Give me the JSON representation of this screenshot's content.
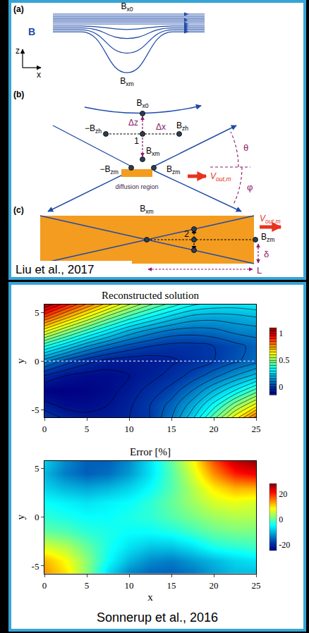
{
  "diagram": {
    "citation": "Liu et al., 2017",
    "a": {
      "letter": "(a)",
      "field": "B",
      "top": {
        "text": "B",
        "sub": "x0"
      },
      "bottom": {
        "text": "B",
        "sub": "xm"
      },
      "axis_vertical": "z",
      "axis_horizontal": "x"
    },
    "b": {
      "letter": "(b)",
      "top": {
        "text": "B",
        "sub": "x0"
      },
      "center": "1",
      "dz": "Δz",
      "dx": "Δx",
      "left": {
        "text": "−B",
        "sub": "zh"
      },
      "right": {
        "text": "B",
        "sub": "zh"
      },
      "mid": {
        "text": "B",
        "sub": "xm"
      },
      "theta": "θ",
      "phi": "φ",
      "left_low": {
        "text": "−B",
        "sub": "zm"
      },
      "right_low": {
        "text": "B",
        "sub": "zm"
      },
      "outflow": {
        "text": "V",
        "sub": "out,m"
      },
      "region": "diffusion region"
    },
    "c": {
      "letter": "(c)",
      "top": {
        "text": "B",
        "sub": "xm"
      },
      "point": "2",
      "right": {
        "text": "B",
        "sub": "zm"
      },
      "outflow": {
        "text": "V",
        "sub": "out,m"
      },
      "half_width": "δ",
      "half_length": "L"
    }
  },
  "chart_caption": "Sonnerup et al., 2016",
  "chart_data": [
    {
      "type": "contour",
      "title": "Reconstructed solution",
      "ylabel": "y",
      "x": [
        0,
        2.5,
        5,
        7.5,
        10,
        12.5,
        15,
        17.5,
        20,
        22.5,
        25
      ],
      "y": [
        -6,
        -4.5,
        -3,
        -1.5,
        0,
        1.5,
        3,
        4.5,
        6
      ],
      "z": [
        [
          0.0,
          -0.05,
          -0.08,
          -0.08,
          -0.05,
          0.0,
          0.1,
          0.25,
          0.45,
          0.65,
          0.85
        ],
        [
          -0.08,
          -0.12,
          -0.12,
          -0.1,
          -0.06,
          0.0,
          0.07,
          0.18,
          0.32,
          0.48,
          0.62
        ],
        [
          -0.15,
          -0.15,
          -0.14,
          -0.12,
          -0.08,
          -0.03,
          0.02,
          0.1,
          0.2,
          0.3,
          0.42
        ],
        [
          -0.05,
          -0.1,
          -0.12,
          -0.12,
          -0.1,
          -0.07,
          -0.03,
          0.02,
          0.08,
          0.15,
          0.22
        ],
        [
          0.12,
          0.03,
          -0.03,
          -0.07,
          -0.08,
          -0.08,
          -0.06,
          -0.03,
          0.0,
          0.04,
          0.08
        ],
        [
          0.35,
          0.25,
          0.15,
          0.08,
          0.03,
          0.0,
          -0.02,
          -0.02,
          0.0,
          0.03,
          0.07
        ],
        [
          0.6,
          0.48,
          0.37,
          0.27,
          0.18,
          0.12,
          0.08,
          0.07,
          0.08,
          0.11,
          0.12
        ],
        [
          0.85,
          0.72,
          0.6,
          0.48,
          0.38,
          0.3,
          0.23,
          0.18,
          0.17,
          0.18,
          0.2
        ],
        [
          1.08,
          0.95,
          0.82,
          0.7,
          0.58,
          0.48,
          0.4,
          0.33,
          0.3,
          0.29,
          0.3
        ]
      ],
      "xlim": [
        0,
        25
      ],
      "xticks": [
        0,
        5,
        10,
        15,
        20,
        25
      ],
      "ylim": [
        -5.8,
        5.8
      ],
      "yticks": [
        -5,
        0,
        5
      ],
      "zlim": [
        -0.15,
        1.1
      ],
      "zticks": [
        0,
        0.5,
        1
      ],
      "hline": 0
    },
    {
      "type": "heatmap",
      "title": "Error [%]",
      "xlabel": "x",
      "ylabel": "y",
      "x": [
        0,
        2.5,
        5,
        7.5,
        10,
        12.5,
        15,
        17.5,
        20,
        22.5,
        25
      ],
      "y": [
        -6,
        -4.5,
        -3,
        -1.5,
        0,
        1.5,
        3,
        4.5,
        6
      ],
      "z": [
        [
          14,
          10,
          2,
          -8,
          -14,
          -16,
          -16,
          -15,
          -12,
          -10,
          -10
        ],
        [
          12,
          8,
          2,
          -5,
          -10,
          -13,
          -14,
          -12,
          -10,
          -8,
          -7
        ],
        [
          6,
          4,
          0,
          -4,
          -7,
          -9,
          -9,
          -7,
          -4,
          -3,
          -2
        ],
        [
          0,
          -1,
          -3,
          -4,
          -5,
          -5,
          -4,
          -2,
          0,
          1,
          1
        ],
        [
          -3,
          -4,
          -5,
          -5,
          -4,
          -3,
          -1,
          1,
          3,
          4,
          4
        ],
        [
          -5,
          -6,
          -7,
          -6,
          -5,
          -3,
          0,
          3,
          6,
          7,
          6
        ],
        [
          -8,
          -10,
          -11,
          -10,
          -8,
          -5,
          -1,
          4,
          9,
          12,
          12
        ],
        [
          -10,
          -14,
          -16,
          -15,
          -12,
          -7,
          -1,
          6,
          14,
          20,
          22
        ],
        [
          -8,
          -13,
          -16,
          -16,
          -13,
          -7,
          0,
          8,
          18,
          25,
          28
        ]
      ],
      "xlim": [
        0,
        25
      ],
      "xticks": [
        0,
        5,
        10,
        15,
        20,
        25
      ],
      "ylim": [
        -5.8,
        5.8
      ],
      "yticks": [
        -5,
        0,
        5
      ],
      "zlim": [
        -25,
        28
      ],
      "zticks": [
        -20,
        0,
        20
      ]
    }
  ]
}
